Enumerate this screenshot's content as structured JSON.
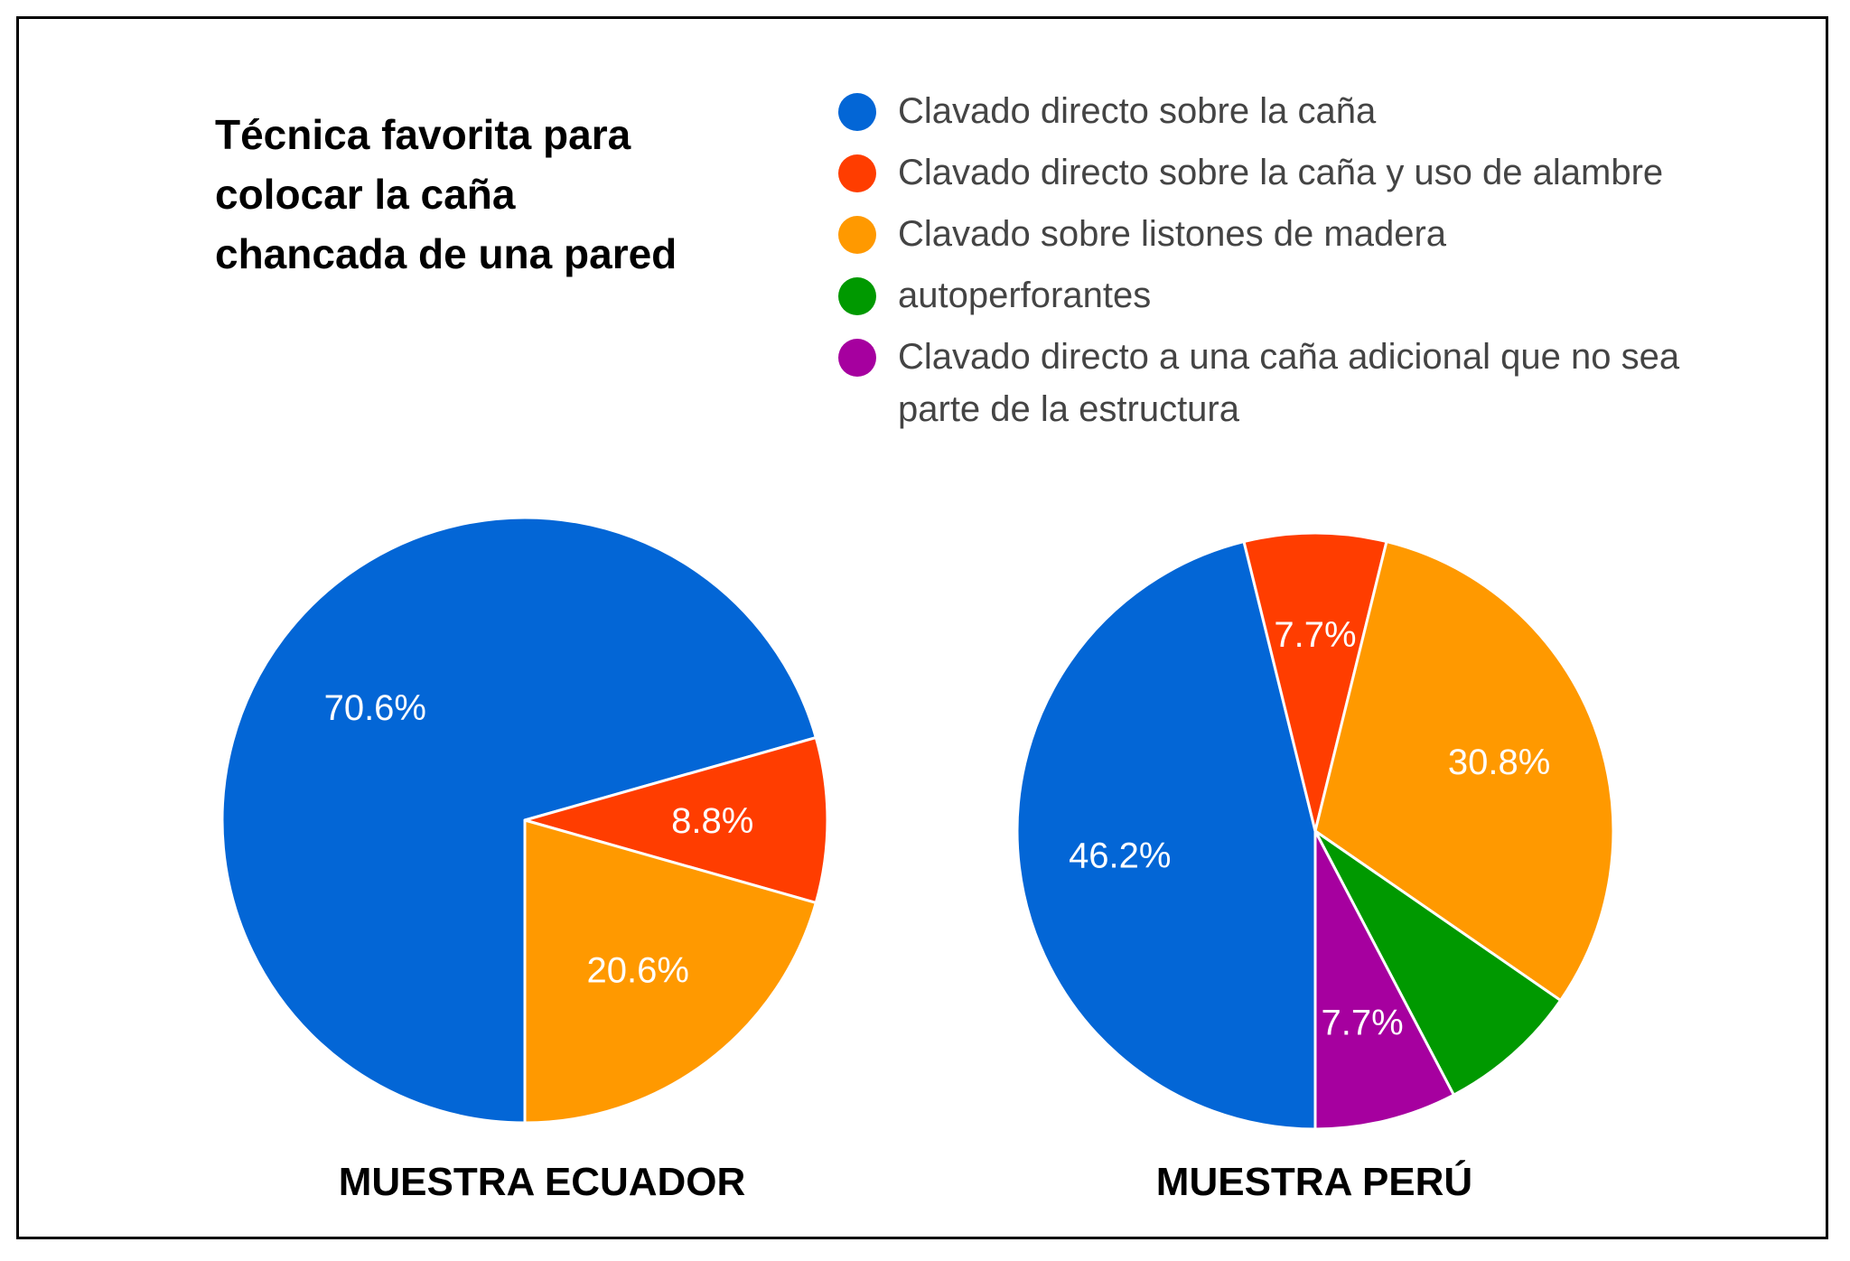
{
  "title_lines": [
    "Técnica favorita para",
    "colocar la caña",
    "chancada de una pared"
  ],
  "legend": [
    {
      "label": "Clavado directo sobre la caña",
      "color": "#0366d6"
    },
    {
      "label": "Clavado directo sobre la caña y uso de alambre",
      "color": "#ff3d00"
    },
    {
      "label": "Clavado sobre listones de madera",
      "color": "#ff9900"
    },
    {
      "label": "autoperforantes",
      "color": "#009900"
    },
    {
      "label": "Clavado directo a una caña adicional que no sea parte de la estructura",
      "color": "#a6009f"
    }
  ],
  "chart_data": [
    {
      "type": "pie",
      "caption": "MUESTRA ECUADOR",
      "slices": [
        {
          "category": "Clavado directo sobre la caña",
          "value": 70.6,
          "label": "70.6%"
        },
        {
          "category": "Clavado directo sobre la caña y uso de alambre",
          "value": 8.8,
          "label": "8.8%"
        },
        {
          "category": "Clavado sobre listones de madera",
          "value": 20.6,
          "label": "20.6%"
        }
      ]
    },
    {
      "type": "pie",
      "caption": "MUESTRA PERÚ",
      "slices": [
        {
          "category": "Clavado directo sobre la caña",
          "value": 46.2,
          "label": "46.2%"
        },
        {
          "category": "Clavado directo sobre la caña y uso de alambre",
          "value": 7.7,
          "label": "7.7%"
        },
        {
          "category": "Clavado sobre listones de madera",
          "value": 30.8,
          "label": "30.8%"
        },
        {
          "category": "autoperforantes",
          "value": 7.7,
          "label": ""
        },
        {
          "category": "Clavado directo a una caña adicional que no sea parte de la estructura",
          "value": 7.7,
          "label": "7.7%"
        }
      ]
    }
  ]
}
